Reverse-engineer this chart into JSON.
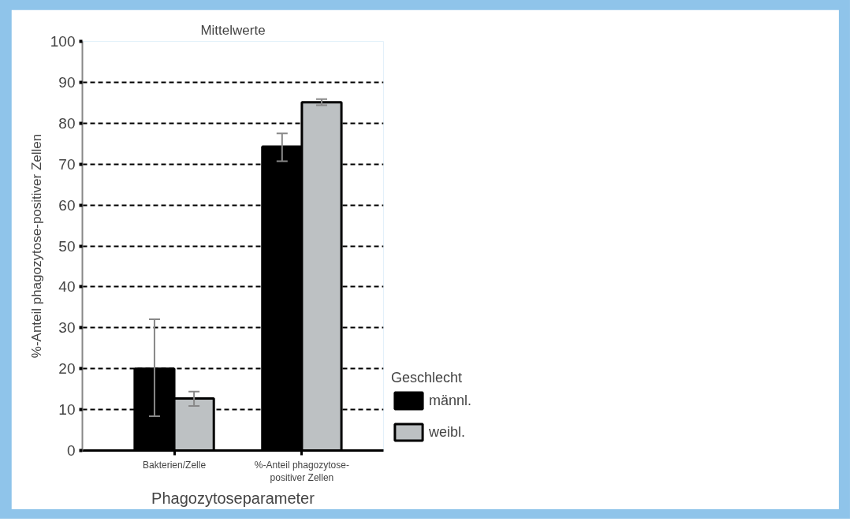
{
  "chart_data": {
    "type": "bar",
    "title": "Mittelwerte",
    "xlabel": "Phagozytoseparameter",
    "ylabel": "%-Anteil phagozytose-positiver Zellen",
    "legend_title": "Geschlecht",
    "categories": [
      "Bakterien/Zelle",
      "%-Anteil phagozytose-\npositiver Zellen"
    ],
    "series": [
      {
        "name": "männl.",
        "color": "#000000",
        "values": [
          20.0,
          74.3
        ],
        "errors": [
          [
            8.4,
            32.1
          ],
          [
            70.7,
            77.5
          ]
        ]
      },
      {
        "name": "weibl.",
        "color": "#bdc1c3",
        "values": [
          12.7,
          85.1
        ],
        "errors": [
          [
            10.9,
            14.4
          ],
          [
            84.4,
            85.9
          ]
        ]
      }
    ],
    "ylim": [
      0,
      100
    ],
    "yticks": [
      0,
      10,
      20,
      30,
      40,
      50,
      60,
      70,
      80,
      90,
      100
    ],
    "grid": "y",
    "legend": "right"
  }
}
